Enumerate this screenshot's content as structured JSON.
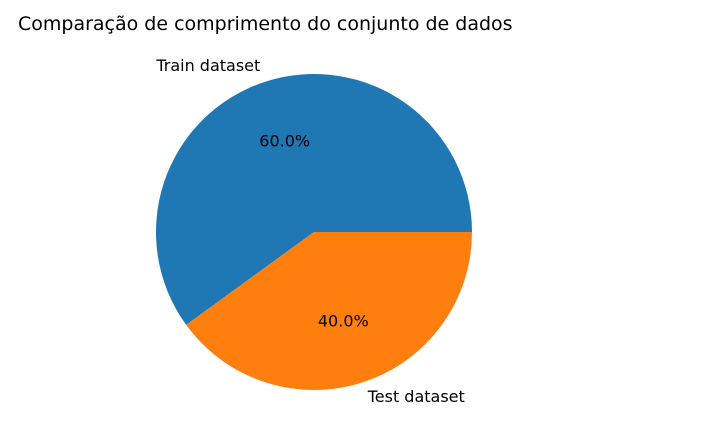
{
  "chart_data": {
    "type": "pie",
    "title": "Comparação de comprimento do conjunto de dados",
    "start_angle_deg": 0,
    "direction": "counterclockwise",
    "slices": [
      {
        "label": "Train dataset",
        "value": 60.0,
        "pct_label": "60.0%",
        "color": "#1f77b4"
      },
      {
        "label": "Test dataset",
        "value": 40.0,
        "pct_label": "40.0%",
        "color": "#ff7f0e"
      }
    ]
  }
}
